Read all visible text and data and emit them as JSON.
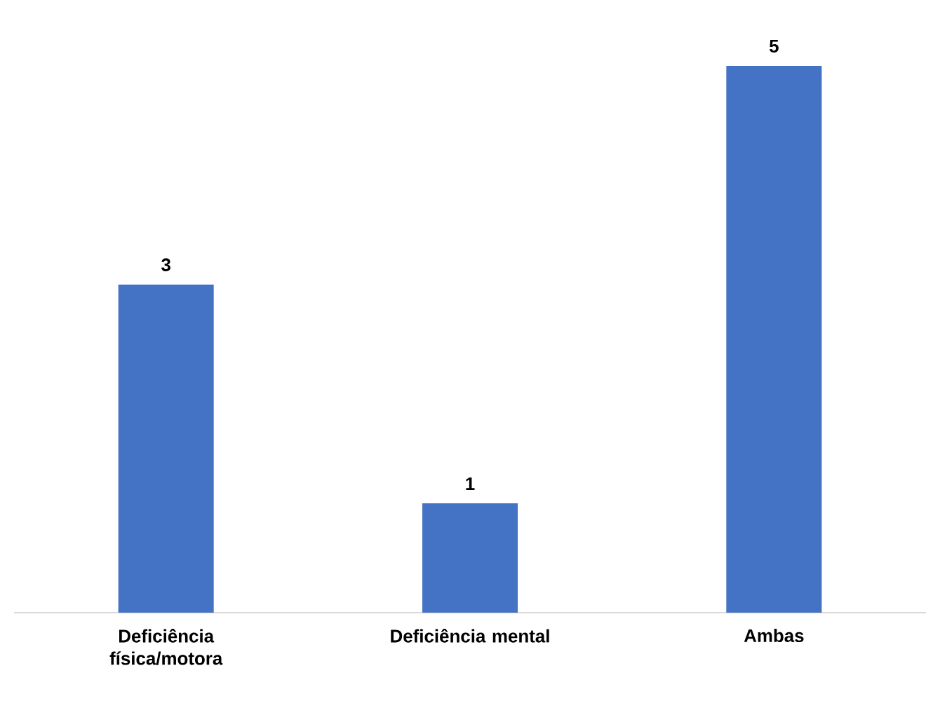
{
  "chart_data": {
    "type": "bar",
    "categories": [
      "Deficiência física/motora",
      "Deficiência mental",
      "Ambas"
    ],
    "values": [
      3,
      1,
      5
    ],
    "color": "#4472c4",
    "data_labels": true
  }
}
